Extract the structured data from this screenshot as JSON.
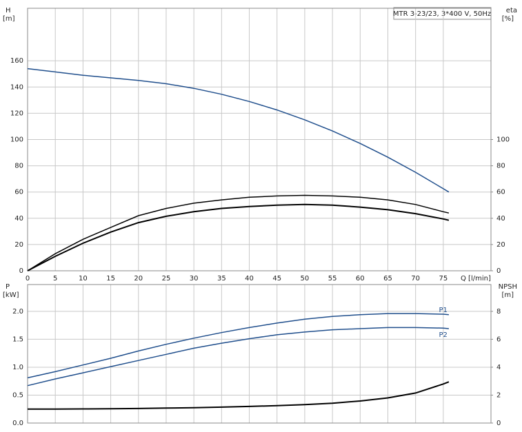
{
  "chart_data": [
    {
      "type": "line",
      "title": "MTR 3-23/23, 3*400 V, 50Hz",
      "ylabel": "H",
      "yunit": "[m]",
      "y2label": "eta",
      "y2unit": "[%]",
      "xlabel": "Q [l/min]",
      "xlim": [
        0,
        83.6
      ],
      "xticks": [
        0,
        5,
        10,
        15,
        20,
        25,
        30,
        35,
        40,
        45,
        50,
        55,
        60,
        65,
        70,
        75
      ],
      "ylim": [
        0,
        200
      ],
      "yticks": [
        0,
        20,
        40,
        60,
        80,
        100,
        120,
        140,
        160
      ],
      "y2lim": [
        0,
        200
      ],
      "y2ticks": [
        0,
        20,
        40,
        60,
        80,
        100
      ],
      "grid": true,
      "x": [
        0,
        5,
        10,
        15,
        20,
        25,
        30,
        35,
        40,
        45,
        50,
        55,
        60,
        65,
        70,
        75,
        76
      ],
      "series": [
        {
          "color": "#1f4e8c",
          "values": [
            154,
            151.5,
            149,
            147,
            145,
            142.5,
            139,
            134.5,
            129,
            122.5,
            115,
            106.5,
            97,
            86.5,
            75,
            62.5,
            60
          ]
        },
        {
          "color": "#000000",
          "axis": "y2",
          "values": [
            0,
            13,
            24,
            33,
            42,
            47.5,
            51.5,
            54,
            56,
            57,
            57.5,
            57,
            56,
            54,
            50.5,
            45,
            44
          ]
        },
        {
          "color": "#000000",
          "axis": "y2",
          "values": [
            0,
            11,
            21,
            29.5,
            36.7,
            41.5,
            45,
            47.5,
            49,
            50,
            50.5,
            50,
            48.5,
            46.5,
            43.5,
            39.5,
            38.5
          ]
        }
      ]
    },
    {
      "type": "line",
      "ylabel": "P",
      "yunit": "[kW]",
      "y2label": "NPSH",
      "y2unit": "[m]",
      "xlim": [
        0,
        83.6
      ],
      "ylim": [
        0,
        2.48
      ],
      "yticks": [
        {
          "value": 0,
          "label": "0.0"
        },
        0.5,
        {
          "value": 1,
          "label": "1.0"
        },
        1.5,
        {
          "value": 2,
          "label": "2.0"
        }
      ],
      "y2lim": [
        0,
        9.92
      ],
      "y2ticks": [
        0,
        2,
        4,
        6,
        8
      ],
      "grid": true,
      "x": [
        0,
        5,
        10,
        15,
        20,
        25,
        30,
        35,
        40,
        45,
        50,
        55,
        60,
        65,
        70,
        75,
        76
      ],
      "series": [
        {
          "name": "P1",
          "color": "#1f4e8c",
          "values": [
            0.81,
            0.92,
            1.04,
            1.16,
            1.29,
            1.41,
            1.52,
            1.62,
            1.71,
            1.79,
            1.86,
            1.91,
            1.94,
            1.96,
            1.96,
            1.95,
            1.94
          ]
        },
        {
          "name": "P2",
          "color": "#1f4e8c",
          "values": [
            0.67,
            0.79,
            0.9,
            1.01,
            1.12,
            1.23,
            1.34,
            1.43,
            1.51,
            1.58,
            1.63,
            1.67,
            1.69,
            1.71,
            1.71,
            1.7,
            1.69
          ]
        },
        {
          "color": "#000000",
          "axis": "y2",
          "values": [
            1.0,
            1.0,
            1.01,
            1.02,
            1.04,
            1.07,
            1.1,
            1.14,
            1.19,
            1.25,
            1.32,
            1.42,
            1.58,
            1.8,
            2.15,
            2.8,
            2.95
          ]
        }
      ]
    }
  ]
}
